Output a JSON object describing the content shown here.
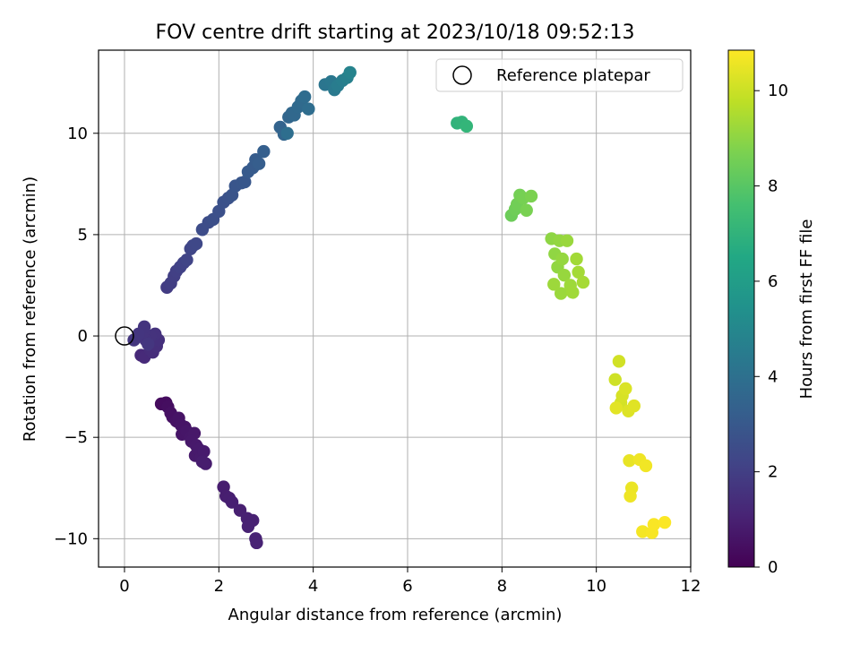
{
  "chart_data": {
    "type": "scatter",
    "title": "FOV centre drift starting at 2023/10/18 09:52:13",
    "xlabel": "Angular distance from reference (arcmin)",
    "ylabel": "Rotation from reference (arcmin)",
    "xlim": [
      -0.55,
      12.0
    ],
    "ylim": [
      -11.4,
      14.1
    ],
    "xticks": [
      0,
      2,
      4,
      6,
      8,
      10,
      12
    ],
    "yticks": [
      -10,
      -5,
      0,
      5,
      10
    ],
    "grid": true,
    "legend": {
      "position": "upper-right",
      "entries": [
        "Reference platepar"
      ]
    },
    "reference": {
      "x": 0,
      "y": 0
    },
    "colorbar": {
      "label": "Hours from first FF file",
      "cmap": "viridis",
      "range": [
        0,
        10.85
      ],
      "ticks": [
        0,
        2,
        4,
        6,
        8,
        10
      ]
    },
    "points": [
      {
        "x": 0.78,
        "y": -3.35,
        "c": 0.3
      },
      {
        "x": 0.88,
        "y": -3.3,
        "c": 0.35
      },
      {
        "x": 0.92,
        "y": -3.5,
        "c": 0.4
      },
      {
        "x": 0.98,
        "y": -3.8,
        "c": 0.45
      },
      {
        "x": 1.02,
        "y": -4.0,
        "c": 0.48
      },
      {
        "x": 1.1,
        "y": -4.2,
        "c": 0.52
      },
      {
        "x": 1.15,
        "y": -4.05,
        "c": 0.55
      },
      {
        "x": 1.2,
        "y": -4.4,
        "c": 0.58
      },
      {
        "x": 1.28,
        "y": -4.5,
        "c": 0.6
      },
      {
        "x": 1.22,
        "y": -4.85,
        "c": 0.62
      },
      {
        "x": 1.32,
        "y": -4.7,
        "c": 0.65
      },
      {
        "x": 1.4,
        "y": -5.0,
        "c": 0.68
      },
      {
        "x": 1.48,
        "y": -4.8,
        "c": 0.7
      },
      {
        "x": 1.42,
        "y": -5.2,
        "c": 0.72
      },
      {
        "x": 1.52,
        "y": -5.4,
        "c": 0.74
      },
      {
        "x": 1.5,
        "y": -5.9,
        "c": 0.76
      },
      {
        "x": 1.58,
        "y": -5.6,
        "c": 0.78
      },
      {
        "x": 1.62,
        "y": -6.0,
        "c": 0.8
      },
      {
        "x": 1.68,
        "y": -5.7,
        "c": 0.82
      },
      {
        "x": 1.72,
        "y": -6.3,
        "c": 0.84
      },
      {
        "x": 1.65,
        "y": -6.2,
        "c": 0.86
      },
      {
        "x": 2.1,
        "y": -7.45,
        "c": 0.88
      },
      {
        "x": 2.15,
        "y": -7.9,
        "c": 0.9
      },
      {
        "x": 2.22,
        "y": -8.0,
        "c": 0.92
      },
      {
        "x": 2.28,
        "y": -8.2,
        "c": 0.94
      },
      {
        "x": 2.45,
        "y": -8.6,
        "c": 0.96
      },
      {
        "x": 2.6,
        "y": -9.0,
        "c": 0.98
      },
      {
        "x": 2.72,
        "y": -9.1,
        "c": 1.0
      },
      {
        "x": 2.62,
        "y": -9.4,
        "c": 1.02
      },
      {
        "x": 2.78,
        "y": -10.0,
        "c": 1.04
      },
      {
        "x": 2.8,
        "y": -10.2,
        "c": 1.06
      },
      {
        "x": 0.35,
        "y": -0.95,
        "c": 1.25
      },
      {
        "x": 0.42,
        "y": -1.05,
        "c": 1.3
      },
      {
        "x": 0.55,
        "y": -0.7,
        "c": 1.35
      },
      {
        "x": 0.6,
        "y": -0.8,
        "c": 1.4
      },
      {
        "x": 0.68,
        "y": -0.5,
        "c": 1.45
      },
      {
        "x": 0.72,
        "y": -0.2,
        "c": 1.5
      },
      {
        "x": 0.65,
        "y": 0.1,
        "c": 1.55
      },
      {
        "x": 0.55,
        "y": 0.0,
        "c": 1.58
      },
      {
        "x": 0.45,
        "y": -0.2,
        "c": 1.6
      },
      {
        "x": 0.4,
        "y": 0.2,
        "c": 1.62
      },
      {
        "x": 0.42,
        "y": 0.45,
        "c": 1.64
      },
      {
        "x": 0.3,
        "y": 0.1,
        "c": 1.66
      },
      {
        "x": 0.2,
        "y": -0.2,
        "c": 1.68
      },
      {
        "x": 0.5,
        "y": -0.4,
        "c": 1.7
      },
      {
        "x": 0.9,
        "y": 2.4,
        "c": 1.9
      },
      {
        "x": 0.98,
        "y": 2.6,
        "c": 1.95
      },
      {
        "x": 1.05,
        "y": 2.95,
        "c": 2.0
      },
      {
        "x": 1.1,
        "y": 3.2,
        "c": 2.05
      },
      {
        "x": 1.18,
        "y": 3.4,
        "c": 2.1
      },
      {
        "x": 1.25,
        "y": 3.6,
        "c": 2.15
      },
      {
        "x": 1.32,
        "y": 3.75,
        "c": 2.2
      },
      {
        "x": 1.4,
        "y": 4.3,
        "c": 2.25
      },
      {
        "x": 1.45,
        "y": 4.45,
        "c": 2.3
      },
      {
        "x": 1.52,
        "y": 4.55,
        "c": 2.35
      },
      {
        "x": 1.65,
        "y": 5.25,
        "c": 2.5
      },
      {
        "x": 1.78,
        "y": 5.6,
        "c": 2.55
      },
      {
        "x": 1.88,
        "y": 5.75,
        "c": 2.6
      },
      {
        "x": 2.0,
        "y": 6.15,
        "c": 2.65
      },
      {
        "x": 2.1,
        "y": 6.6,
        "c": 2.7
      },
      {
        "x": 2.2,
        "y": 6.8,
        "c": 2.75
      },
      {
        "x": 2.28,
        "y": 6.95,
        "c": 2.8
      },
      {
        "x": 2.35,
        "y": 7.4,
        "c": 2.85
      },
      {
        "x": 2.48,
        "y": 7.55,
        "c": 2.9
      },
      {
        "x": 2.55,
        "y": 7.6,
        "c": 2.95
      },
      {
        "x": 2.62,
        "y": 8.1,
        "c": 3.05
      },
      {
        "x": 2.72,
        "y": 8.3,
        "c": 3.1
      },
      {
        "x": 2.78,
        "y": 8.7,
        "c": 3.15
      },
      {
        "x": 2.85,
        "y": 8.5,
        "c": 3.2
      },
      {
        "x": 2.95,
        "y": 9.1,
        "c": 3.25
      },
      {
        "x": 3.3,
        "y": 10.3,
        "c": 3.45
      },
      {
        "x": 3.38,
        "y": 9.95,
        "c": 3.5
      },
      {
        "x": 3.48,
        "y": 10.8,
        "c": 3.55
      },
      {
        "x": 3.55,
        "y": 11.0,
        "c": 3.6
      },
      {
        "x": 3.6,
        "y": 10.9,
        "c": 3.65
      },
      {
        "x": 3.68,
        "y": 11.3,
        "c": 3.7
      },
      {
        "x": 3.75,
        "y": 11.6,
        "c": 3.75
      },
      {
        "x": 3.82,
        "y": 11.8,
        "c": 3.8
      },
      {
        "x": 3.9,
        "y": 11.2,
        "c": 3.85
      },
      {
        "x": 3.45,
        "y": 10.0,
        "c": 3.9
      },
      {
        "x": 4.25,
        "y": 12.4,
        "c": 4.2
      },
      {
        "x": 4.38,
        "y": 12.55,
        "c": 4.3
      },
      {
        "x": 4.45,
        "y": 12.15,
        "c": 4.4
      },
      {
        "x": 4.52,
        "y": 12.35,
        "c": 4.5
      },
      {
        "x": 4.62,
        "y": 12.6,
        "c": 4.6
      },
      {
        "x": 4.72,
        "y": 12.75,
        "c": 4.7
      },
      {
        "x": 4.78,
        "y": 13.0,
        "c": 4.8
      },
      {
        "x": 7.05,
        "y": 10.5,
        "c": 7.0
      },
      {
        "x": 7.15,
        "y": 10.55,
        "c": 7.05
      },
      {
        "x": 7.25,
        "y": 10.35,
        "c": 7.1
      },
      {
        "x": 8.2,
        "y": 5.95,
        "c": 8.4
      },
      {
        "x": 8.28,
        "y": 6.25,
        "c": 8.45
      },
      {
        "x": 8.32,
        "y": 6.5,
        "c": 8.5
      },
      {
        "x": 8.38,
        "y": 6.95,
        "c": 8.55
      },
      {
        "x": 8.45,
        "y": 6.8,
        "c": 8.6
      },
      {
        "x": 8.52,
        "y": 6.2,
        "c": 8.65
      },
      {
        "x": 8.62,
        "y": 6.9,
        "c": 8.7
      },
      {
        "x": 9.05,
        "y": 4.8,
        "c": 9.0
      },
      {
        "x": 9.12,
        "y": 4.05,
        "c": 9.03
      },
      {
        "x": 9.18,
        "y": 3.4,
        "c": 9.06
      },
      {
        "x": 9.22,
        "y": 4.7,
        "c": 9.09
      },
      {
        "x": 9.28,
        "y": 3.8,
        "c": 9.12
      },
      {
        "x": 9.32,
        "y": 3.0,
        "c": 9.15
      },
      {
        "x": 9.38,
        "y": 4.7,
        "c": 9.18
      },
      {
        "x": 9.25,
        "y": 2.1,
        "c": 9.21
      },
      {
        "x": 9.1,
        "y": 2.55,
        "c": 9.24
      },
      {
        "x": 9.45,
        "y": 2.5,
        "c": 9.27
      },
      {
        "x": 9.5,
        "y": 2.15,
        "c": 9.3
      },
      {
        "x": 9.58,
        "y": 3.8,
        "c": 9.33
      },
      {
        "x": 9.62,
        "y": 3.15,
        "c": 9.36
      },
      {
        "x": 9.72,
        "y": 2.65,
        "c": 9.39
      },
      {
        "x": 10.4,
        "y": -2.15,
        "c": 10.05
      },
      {
        "x": 10.48,
        "y": -1.25,
        "c": 10.1
      },
      {
        "x": 10.52,
        "y": -3.3,
        "c": 10.15
      },
      {
        "x": 10.55,
        "y": -2.95,
        "c": 10.2
      },
      {
        "x": 10.62,
        "y": -2.6,
        "c": 10.25
      },
      {
        "x": 10.68,
        "y": -3.7,
        "c": 10.3
      },
      {
        "x": 10.8,
        "y": -3.45,
        "c": 10.35
      },
      {
        "x": 10.42,
        "y": -3.55,
        "c": 10.4
      },
      {
        "x": 10.7,
        "y": -6.15,
        "c": 10.5
      },
      {
        "x": 10.75,
        "y": -7.5,
        "c": 10.55
      },
      {
        "x": 10.72,
        "y": -7.9,
        "c": 10.6
      },
      {
        "x": 10.92,
        "y": -6.1,
        "c": 10.62
      },
      {
        "x": 11.05,
        "y": -6.4,
        "c": 10.65
      },
      {
        "x": 10.98,
        "y": -9.65,
        "c": 10.7
      },
      {
        "x": 11.18,
        "y": -9.7,
        "c": 10.75
      },
      {
        "x": 11.22,
        "y": -9.3,
        "c": 10.78
      },
      {
        "x": 11.45,
        "y": -9.2,
        "c": 10.82
      }
    ]
  }
}
